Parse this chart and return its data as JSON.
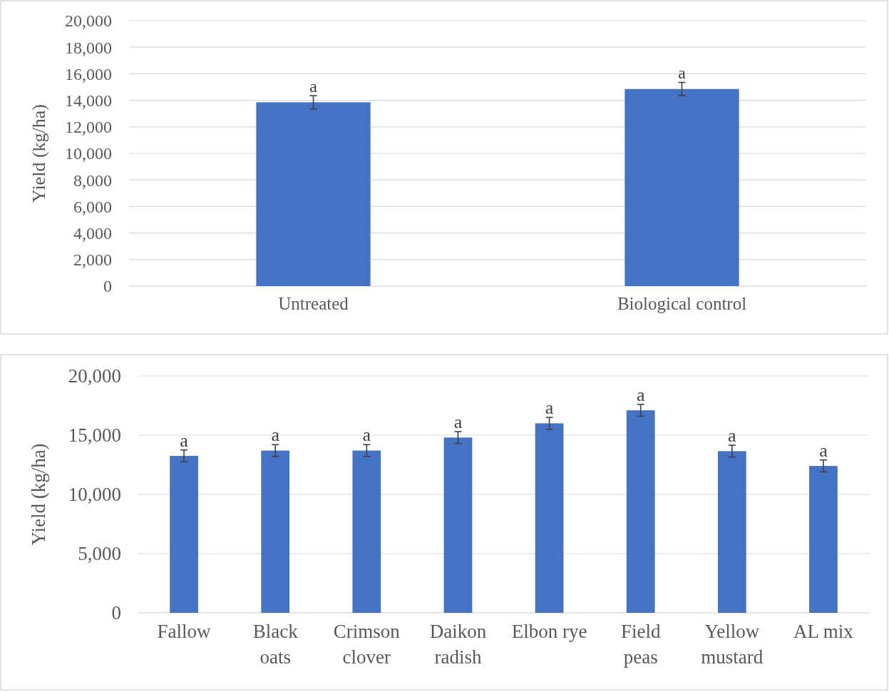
{
  "chart_data": [
    {
      "type": "bar",
      "ylabel": "Yield (kg/ha)",
      "categories": [
        "Untreated",
        "Biological control"
      ],
      "values": [
        13850,
        14850
      ],
      "errors": [
        500,
        500
      ],
      "color": "#4472c4",
      "ylim": [
        0,
        20000
      ],
      "yticks": [
        {
          "value": 0,
          "label": "0"
        },
        {
          "value": 2000,
          "label": "2,000"
        },
        {
          "value": 4000,
          "label": "4,000"
        },
        {
          "value": 6000,
          "label": "6,000"
        },
        {
          "value": 8000,
          "label": "8,000"
        },
        {
          "value": 10000,
          "label": "10,000"
        },
        {
          "value": 12000,
          "label": "12,000"
        },
        {
          "value": 14000,
          "label": "14,000"
        },
        {
          "value": 16000,
          "label": "16,000"
        },
        {
          "value": 18000,
          "label": "18,000"
        },
        {
          "value": 20000,
          "label": "20,000"
        }
      ],
      "grid": "y",
      "annotations": [
        {
          "text": "a",
          "x": "Untreated",
          "y": 14350
        },
        {
          "text": "a",
          "x": "Biological control",
          "y": 15350
        }
      ]
    },
    {
      "type": "bar",
      "ylabel": "Yield (kg/ha)",
      "categories": [
        "Fallow",
        "Black oats",
        "Crimson clover",
        "Daikon radish",
        "Elbon rye",
        "Field peas",
        "Yellow mustard",
        "AL mix"
      ],
      "values": [
        13250,
        13700,
        13700,
        14800,
        16000,
        17100,
        13650,
        12400
      ],
      "errors": [
        500,
        500,
        500,
        500,
        500,
        500,
        500,
        500
      ],
      "color": "#4472c4",
      "ylim": [
        0,
        20000
      ],
      "yticks": [
        {
          "value": 0,
          "label": "0"
        },
        {
          "value": 5000,
          "label": "5,000"
        },
        {
          "value": 10000,
          "label": "10,000"
        },
        {
          "value": 15000,
          "label": "15,000"
        },
        {
          "value": 20000,
          "label": "20,000"
        }
      ],
      "grid": "y",
      "annotations": [
        {
          "text": "a",
          "x": "Fallow",
          "y": 13750
        },
        {
          "text": "a",
          "x": "Black oats",
          "y": 14200
        },
        {
          "text": "a",
          "x": "Crimson clover",
          "y": 14200
        },
        {
          "text": "a",
          "x": "Daikon radish",
          "y": 15300
        },
        {
          "text": "a",
          "x": "Elbon rye",
          "y": 16500
        },
        {
          "text": "a",
          "x": "Field peas",
          "y": 17600
        },
        {
          "text": "a",
          "x": "Yellow mustard",
          "y": 14150
        },
        {
          "text": "a",
          "x": "AL mix",
          "y": 12900
        }
      ]
    }
  ]
}
